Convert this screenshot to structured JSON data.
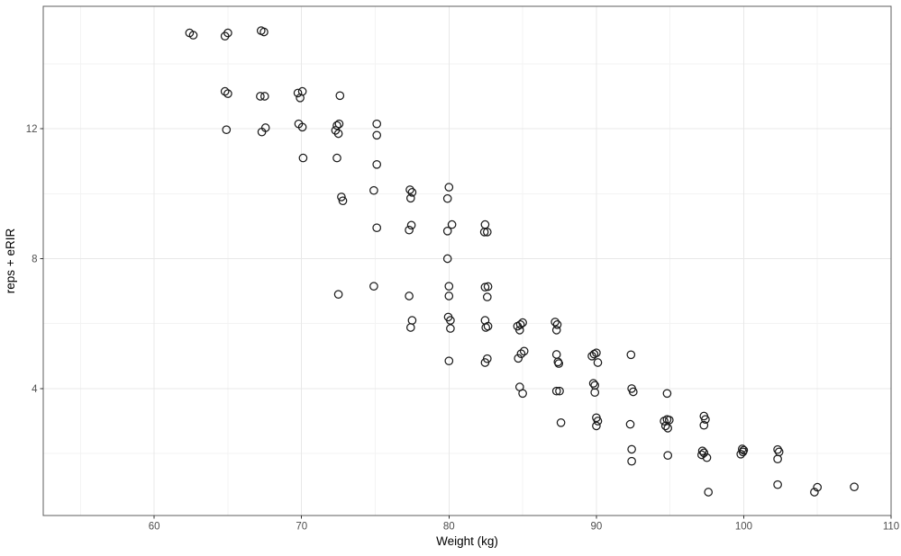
{
  "chart_data": {
    "type": "scatter",
    "title": "",
    "xlabel": "Weight (kg)",
    "ylabel": "reps + eRIR",
    "x_breaks": [
      60,
      70,
      80,
      90,
      100,
      110
    ],
    "x_break_labels": [
      "60",
      "70",
      "80",
      "90",
      "100",
      "110"
    ],
    "x_minor_breaks": [
      55,
      65,
      75,
      85,
      95,
      105
    ],
    "y_breaks": [
      4,
      8,
      12
    ],
    "y_break_labels": [
      "4",
      "8",
      "12"
    ],
    "y_minor_breaks": [
      2,
      6,
      10,
      14
    ],
    "xlim": [
      52.47,
      110
    ],
    "ylim": [
      0.09,
      15.77
    ],
    "grid": "on",
    "legend": "none",
    "marker": "open-circle",
    "colors": {
      "background": "#ffffff",
      "panel_background": "#ffffff",
      "grid_major": "#e8e8e8",
      "grid_minor": "#f3f3f3",
      "panel_border": "#5c5c5c",
      "tick_mark": "#333333",
      "tick_label": "#4d4d4d",
      "axis_title": "#000000",
      "point_stroke": "#1a1a1a"
    },
    "points": [
      [
        62.4,
        14.95
      ],
      [
        62.65,
        14.88
      ],
      [
        64.8,
        14.85
      ],
      [
        65.0,
        14.95
      ],
      [
        67.25,
        15.02
      ],
      [
        67.45,
        14.98
      ],
      [
        64.8,
        13.15
      ],
      [
        65.0,
        13.08
      ],
      [
        64.9,
        11.97
      ],
      [
        67.2,
        13.0
      ],
      [
        67.5,
        13.0
      ],
      [
        67.3,
        11.9
      ],
      [
        67.55,
        12.03
      ],
      [
        69.75,
        13.1
      ],
      [
        70.05,
        13.15
      ],
      [
        69.9,
        12.95
      ],
      [
        69.8,
        12.15
      ],
      [
        70.05,
        12.05
      ],
      [
        70.1,
        11.1
      ],
      [
        72.6,
        13.02
      ],
      [
        72.4,
        12.1
      ],
      [
        72.55,
        12.15
      ],
      [
        72.3,
        11.95
      ],
      [
        72.5,
        11.85
      ],
      [
        72.4,
        11.1
      ],
      [
        72.7,
        9.9
      ],
      [
        72.8,
        9.78
      ],
      [
        72.5,
        6.9
      ],
      [
        75.1,
        12.15
      ],
      [
        75.1,
        11.8
      ],
      [
        75.1,
        10.9
      ],
      [
        74.9,
        10.1
      ],
      [
        75.1,
        8.95
      ],
      [
        74.9,
        7.15
      ],
      [
        77.35,
        10.12
      ],
      [
        77.5,
        10.04
      ],
      [
        77.4,
        9.86
      ],
      [
        77.45,
        9.03
      ],
      [
        77.3,
        8.88
      ],
      [
        77.3,
        6.85
      ],
      [
        77.5,
        6.1
      ],
      [
        77.4,
        5.88
      ],
      [
        80.0,
        10.2
      ],
      [
        79.9,
        9.85
      ],
      [
        80.2,
        9.05
      ],
      [
        79.9,
        8.85
      ],
      [
        79.9,
        8.0
      ],
      [
        80.0,
        7.15
      ],
      [
        80.0,
        6.85
      ],
      [
        79.95,
        6.2
      ],
      [
        80.1,
        6.1
      ],
      [
        80.1,
        5.85
      ],
      [
        80.0,
        4.85
      ],
      [
        82.45,
        9.05
      ],
      [
        82.4,
        8.82
      ],
      [
        82.6,
        8.82
      ],
      [
        82.45,
        7.12
      ],
      [
        82.65,
        7.14
      ],
      [
        82.6,
        6.82
      ],
      [
        82.45,
        6.1
      ],
      [
        82.5,
        5.88
      ],
      [
        82.65,
        5.92
      ],
      [
        82.45,
        4.8
      ],
      [
        82.6,
        4.92
      ],
      [
        84.65,
        5.92
      ],
      [
        84.85,
        5.97
      ],
      [
        85.0,
        6.03
      ],
      [
        84.8,
        5.8
      ],
      [
        84.7,
        4.93
      ],
      [
        84.9,
        5.07
      ],
      [
        85.1,
        5.15
      ],
      [
        84.8,
        4.05
      ],
      [
        85.0,
        3.85
      ],
      [
        87.2,
        6.05
      ],
      [
        87.35,
        5.97
      ],
      [
        87.3,
        5.8
      ],
      [
        87.3,
        5.05
      ],
      [
        87.4,
        4.82
      ],
      [
        87.45,
        4.77
      ],
      [
        87.3,
        3.92
      ],
      [
        87.5,
        3.92
      ],
      [
        87.6,
        2.95
      ],
      [
        89.7,
        5.0
      ],
      [
        89.85,
        5.06
      ],
      [
        90.0,
        5.1
      ],
      [
        90.1,
        4.8
      ],
      [
        89.8,
        4.16
      ],
      [
        89.9,
        4.1
      ],
      [
        89.9,
        3.88
      ],
      [
        90.0,
        3.1
      ],
      [
        90.1,
        3.0
      ],
      [
        90.0,
        2.85
      ],
      [
        92.35,
        5.04
      ],
      [
        92.4,
        4.0
      ],
      [
        92.5,
        3.9
      ],
      [
        92.3,
        2.9
      ],
      [
        92.4,
        2.13
      ],
      [
        92.4,
        1.76
      ],
      [
        94.8,
        3.85
      ],
      [
        94.6,
        3.0
      ],
      [
        94.8,
        3.05
      ],
      [
        94.95,
        3.03
      ],
      [
        94.7,
        2.85
      ],
      [
        94.85,
        2.78
      ],
      [
        94.85,
        1.94
      ],
      [
        97.3,
        3.15
      ],
      [
        97.4,
        3.05
      ],
      [
        97.3,
        2.87
      ],
      [
        97.2,
        2.08
      ],
      [
        97.3,
        2.02
      ],
      [
        97.15,
        1.96
      ],
      [
        97.5,
        1.87
      ],
      [
        97.6,
        0.81
      ],
      [
        99.9,
        2.14
      ],
      [
        100.0,
        2.1
      ],
      [
        99.95,
        2.05
      ],
      [
        99.8,
        1.98
      ],
      [
        102.3,
        2.12
      ],
      [
        102.4,
        2.05
      ],
      [
        102.3,
        1.83
      ],
      [
        102.3,
        1.04
      ],
      [
        105.0,
        0.96
      ],
      [
        104.8,
        0.81
      ],
      [
        107.5,
        0.97
      ]
    ]
  }
}
